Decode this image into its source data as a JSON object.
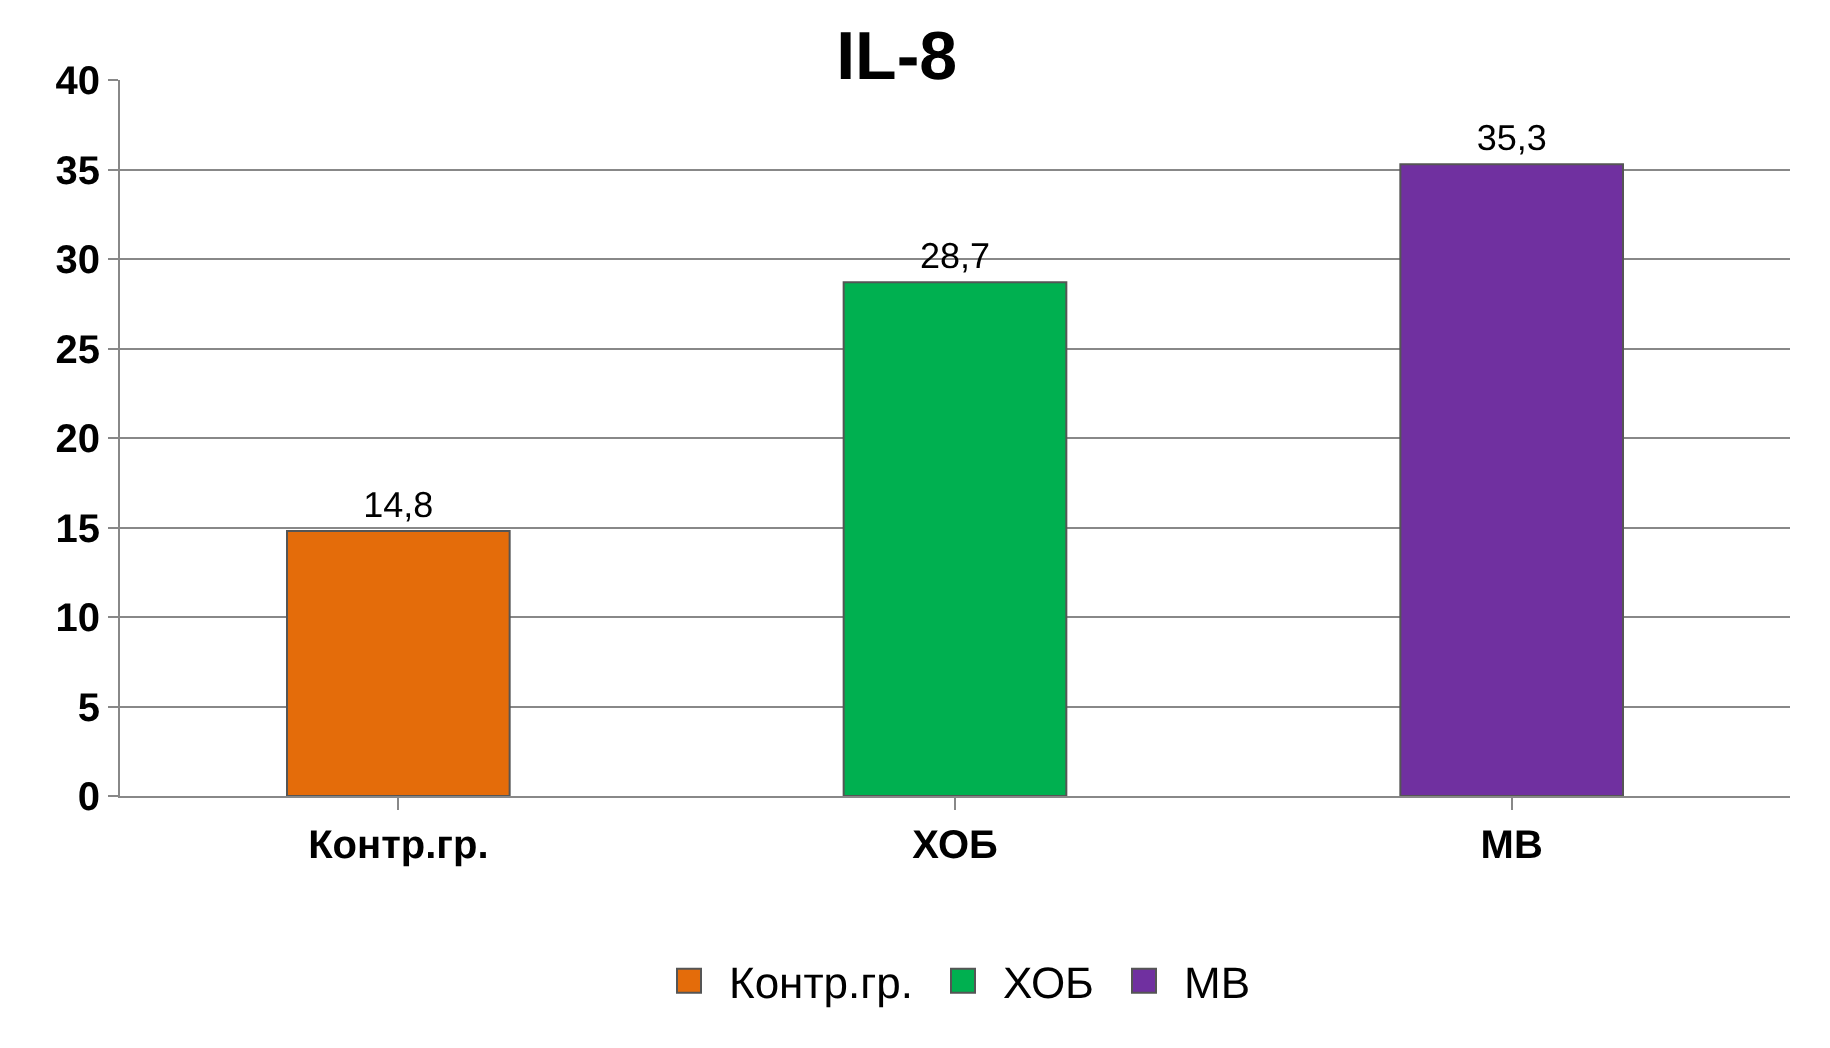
{
  "chart_data": {
    "type": "bar",
    "title": "IL-8",
    "categories": [
      "Контр.гр.",
      "ХОБ",
      "МВ"
    ],
    "series": [
      {
        "name": "Контр.гр.",
        "color": "#e46c0a",
        "values": [
          14.8,
          null,
          null
        ],
        "value_labels": [
          "14,8",
          null,
          null
        ]
      },
      {
        "name": "ХОБ",
        "color": "#00b050",
        "values": [
          null,
          28.7,
          null
        ],
        "value_labels": [
          null,
          "28,7",
          null
        ]
      },
      {
        "name": "МВ",
        "color": "#7030a0",
        "values": [
          null,
          null,
          35.3
        ],
        "value_labels": [
          null,
          null,
          "35,3"
        ]
      }
    ],
    "ylim": [
      0,
      40
    ],
    "yticks": [
      0,
      5,
      10,
      15,
      20,
      25,
      30,
      35,
      40
    ],
    "grid": "y",
    "legend": "bottom"
  }
}
